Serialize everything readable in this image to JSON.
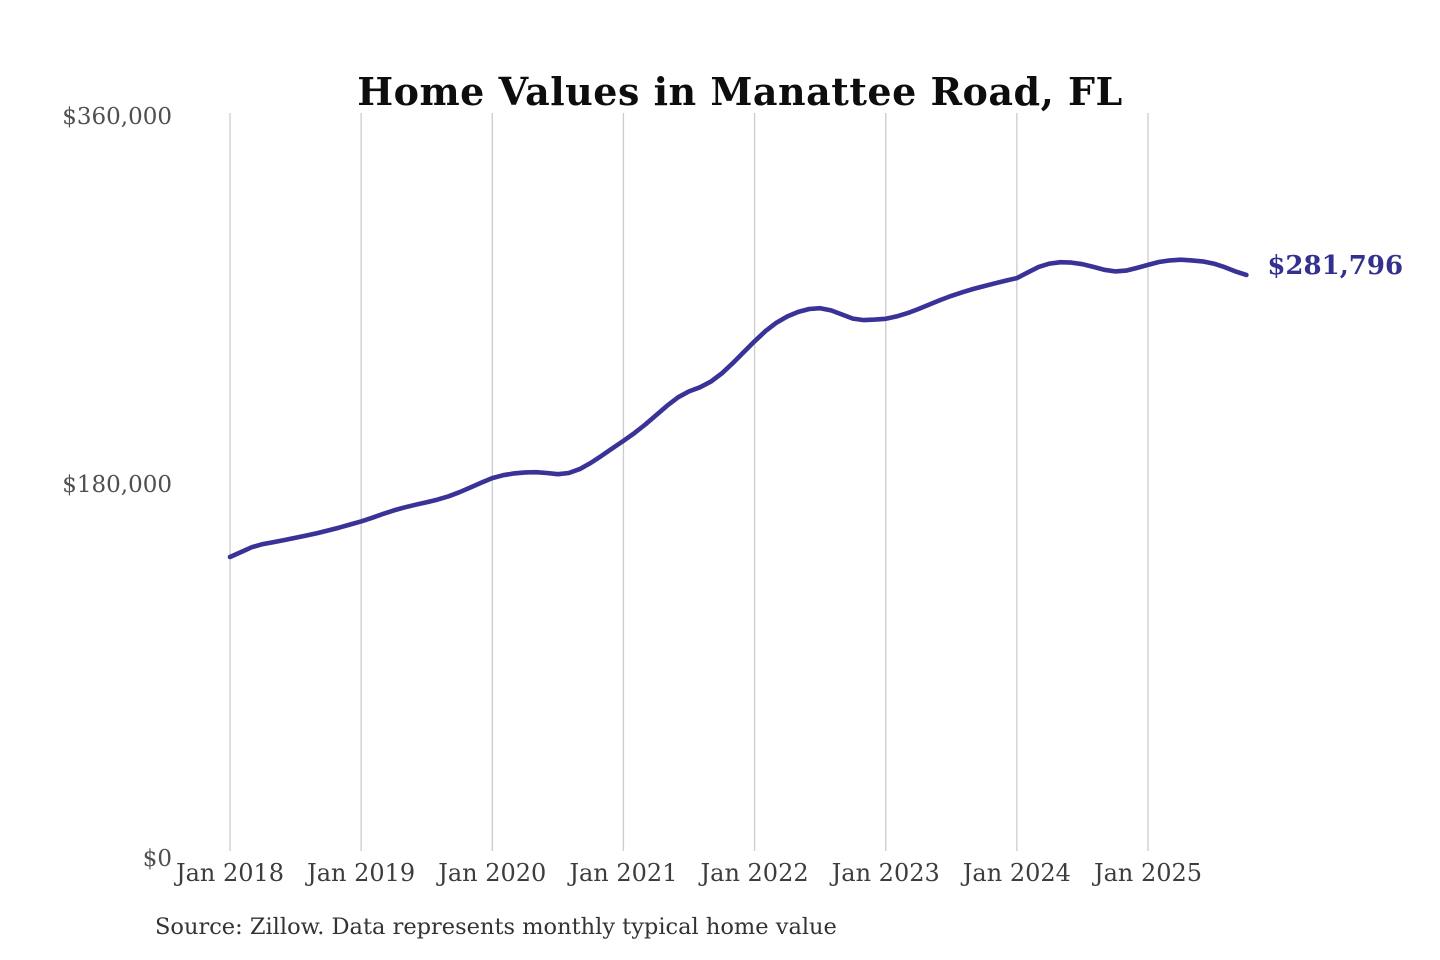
{
  "header": {
    "title": "Home Values in Manattee Road, FL"
  },
  "chart": {
    "end_label": "$281,796",
    "line_color": "#3a3397",
    "grid_color": "#cccccc",
    "end_label_color": "#34308e"
  },
  "footer": {
    "source_note": "Source: Zillow. Data represents monthly typical home value"
  },
  "chart_data": {
    "type": "line",
    "title": "Home Values in Manattee Road, FL",
    "series_name": "Typical home value",
    "x": [
      "2018-01",
      "2018-02",
      "2018-03",
      "2018-04",
      "2018-05",
      "2018-06",
      "2018-07",
      "2018-08",
      "2018-09",
      "2018-10",
      "2018-11",
      "2018-12",
      "2019-01",
      "2019-02",
      "2019-03",
      "2019-04",
      "2019-05",
      "2019-06",
      "2019-07",
      "2019-08",
      "2019-09",
      "2019-10",
      "2019-11",
      "2019-12",
      "2020-01",
      "2020-02",
      "2020-03",
      "2020-04",
      "2020-05",
      "2020-06",
      "2020-07",
      "2020-08",
      "2020-09",
      "2020-10",
      "2020-11",
      "2020-12",
      "2021-01",
      "2021-02",
      "2021-03",
      "2021-04",
      "2021-05",
      "2021-06",
      "2021-07",
      "2021-08",
      "2021-09",
      "2021-10",
      "2021-11",
      "2021-12",
      "2022-01",
      "2022-02",
      "2022-03",
      "2022-04",
      "2022-05",
      "2022-06",
      "2022-07",
      "2022-08",
      "2022-09",
      "2022-10",
      "2022-11",
      "2022-12",
      "2023-01",
      "2023-02",
      "2023-03",
      "2023-04",
      "2023-05",
      "2023-06",
      "2023-07",
      "2023-08",
      "2023-09",
      "2023-10",
      "2023-11",
      "2023-12",
      "2024-01",
      "2024-02",
      "2024-03",
      "2024-04",
      "2024-05",
      "2024-06",
      "2024-07",
      "2024-08",
      "2024-09",
      "2024-10",
      "2024-11",
      "2024-12",
      "2025-01",
      "2025-02",
      "2025-03",
      "2025-04",
      "2025-05",
      "2025-06",
      "2025-07",
      "2025-08",
      "2025-09",
      "2025-10"
    ],
    "values": [
      143800,
      146200,
      148600,
      150100,
      151100,
      152100,
      153200,
      154300,
      155500,
      156800,
      158200,
      159700,
      161200,
      163000,
      164900,
      166600,
      168100,
      169400,
      170600,
      171900,
      173500,
      175500,
      177800,
      180200,
      182400,
      183800,
      184700,
      185200,
      185300,
      184900,
      184300,
      184900,
      186800,
      189800,
      193300,
      197000,
      200600,
      204400,
      208600,
      213200,
      217800,
      221900,
      224800,
      226800,
      229600,
      233600,
      238600,
      244000,
      249300,
      254300,
      258400,
      261500,
      263700,
      265100,
      265500,
      264400,
      262400,
      260400,
      259700,
      259900,
      260300,
      261500,
      263100,
      265100,
      267300,
      269500,
      271500,
      273300,
      274900,
      276300,
      277700,
      279000,
      280200,
      283000,
      285700,
      287300,
      288000,
      287800,
      287000,
      285700,
      284300,
      283500,
      283900,
      285200,
      286700,
      288100,
      288900,
      289200,
      288900,
      288400,
      287300,
      285600,
      283500,
      281796
    ],
    "x_tick_labels": [
      "Jan 2018",
      "Jan 2019",
      "Jan 2020",
      "Jan 2021",
      "Jan 2022",
      "Jan 2023",
      "Jan 2024",
      "Jan 2025"
    ],
    "y_ticks": [
      0,
      180000,
      360000
    ],
    "y_tick_labels": [
      "$0",
      "$180,000",
      "$360,000"
    ],
    "ylim": [
      0,
      360000
    ],
    "grid": "vertical-only",
    "legend": "none",
    "end_value": 281796,
    "end_point_label": "$281,796",
    "source": "Source: Zillow. Data represents monthly typical home value"
  }
}
